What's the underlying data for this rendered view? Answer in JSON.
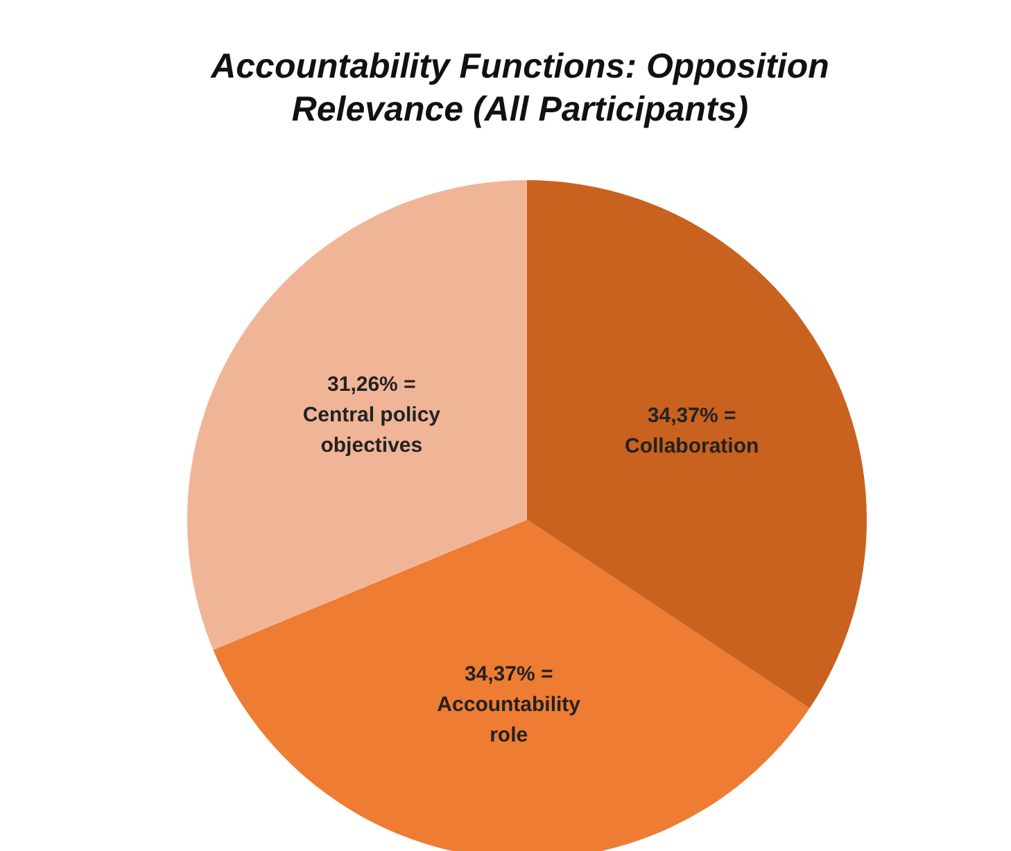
{
  "chart_data": {
    "type": "pie",
    "title": "Accountability  Functions: Opposition Relevance (All Participants)",
    "categories": [
      "Collaboration",
      "Accountability role",
      "Central policy objectives"
    ],
    "values": [
      34.37,
      34.37,
      31.26
    ],
    "value_labels": [
      "34,37% =",
      "34,37% =",
      "31,26% ="
    ],
    "colors": [
      "#c9611f",
      "#ee7c33",
      "#f0b597"
    ],
    "legend": false
  }
}
